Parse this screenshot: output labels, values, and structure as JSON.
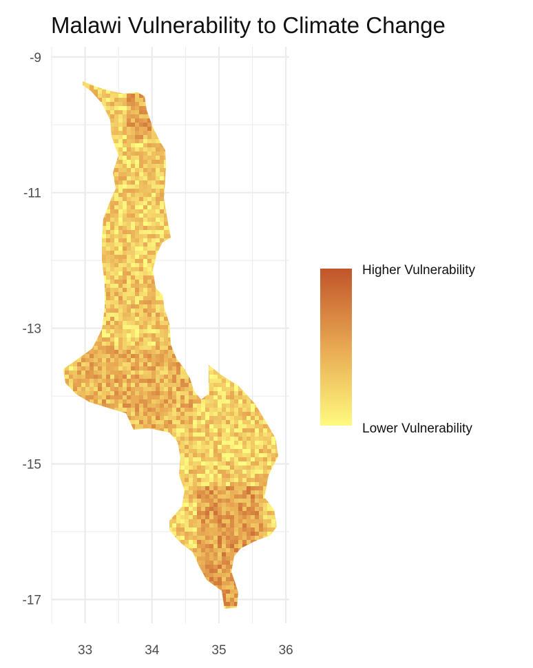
{
  "title": "Malawi Vulnerability to Climate Change",
  "colors": {
    "low": "#fffa80",
    "mid": "#e8a852",
    "high": "#c0552a",
    "grid": "#ebebeb",
    "background": "#ffffff"
  },
  "map": {
    "x_ticks": [
      "33",
      "34",
      "35",
      "36"
    ],
    "y_ticks": [
      "-9",
      "-11",
      "-13",
      "-15",
      "-17"
    ],
    "x_range": [
      32.5,
      36.05
    ],
    "y_range": [
      -17.35,
      -8.85
    ],
    "region": "Malawi",
    "fill_variable": "climate vulnerability"
  },
  "legend": {
    "high_label": "Higher Vulnerability",
    "low_label": "Lower Vulnerability"
  }
}
